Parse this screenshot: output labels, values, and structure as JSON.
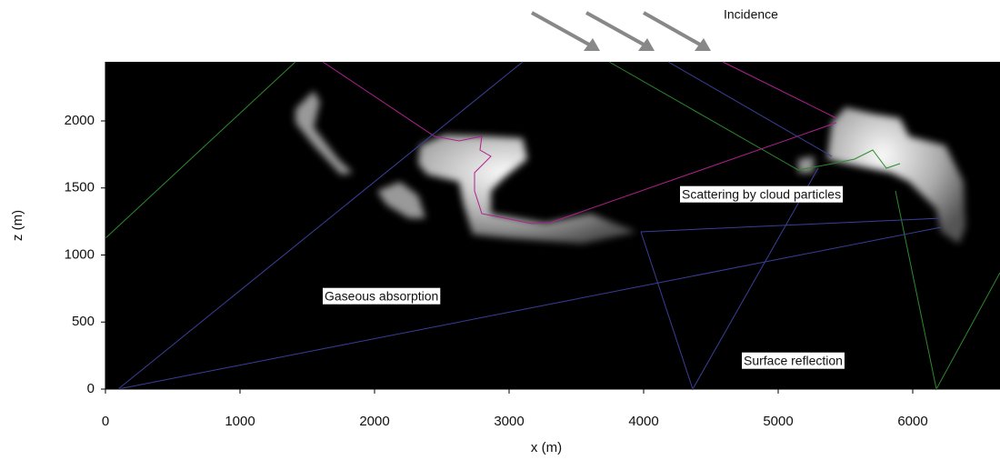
{
  "chart_data": {
    "type": "image",
    "xlabel": "x (m)",
    "ylabel": "z (m)",
    "xlim": [
      0,
      6650
    ],
    "ylim": [
      0,
      2440
    ],
    "xticks": [
      0,
      1000,
      2000,
      3000,
      4000,
      5000,
      6000
    ],
    "yticks": [
      0,
      500,
      1000,
      1500,
      2000
    ],
    "annotations": [
      "Incidence",
      "Gaseous absorption",
      "Scattering by cloud particles",
      "Surface reflection"
    ]
  }
}
